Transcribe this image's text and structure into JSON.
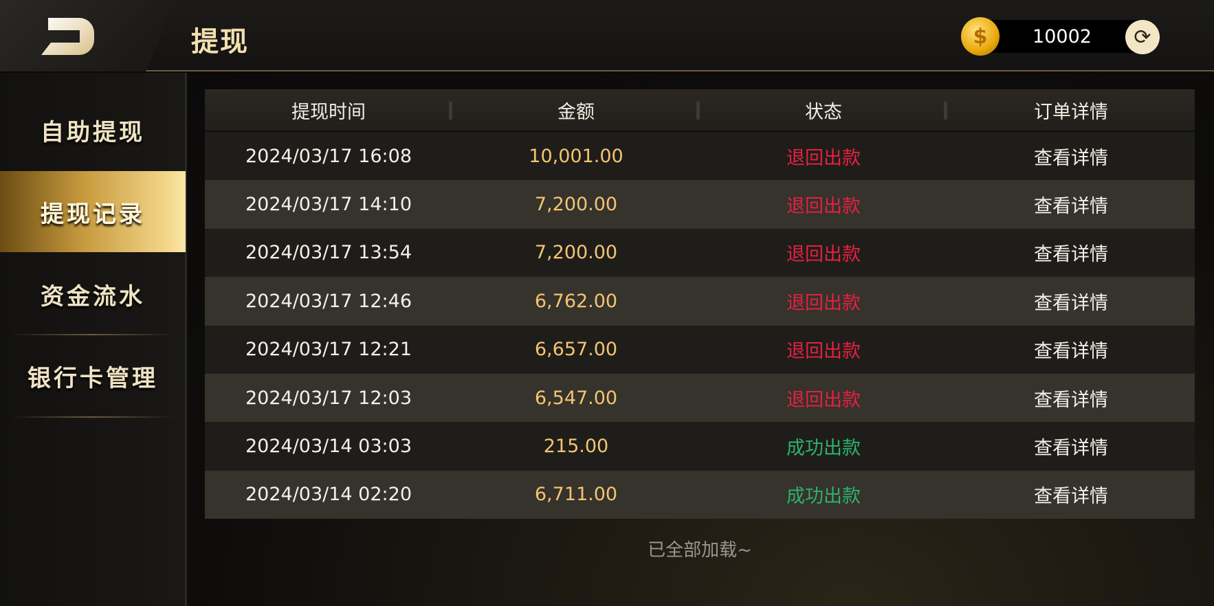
{
  "header": {
    "title": "提现",
    "balance": "10002",
    "coin_icon": "dollar-coin-icon",
    "refresh_icon": "refresh-icon",
    "back_icon": "back-icon"
  },
  "sidebar": {
    "items": [
      {
        "label": "自助提现",
        "active": false
      },
      {
        "label": "提现记录",
        "active": true
      },
      {
        "label": "资金流水",
        "active": false
      },
      {
        "label": "银行卡管理",
        "active": false
      }
    ]
  },
  "table": {
    "columns": [
      "提现时间",
      "金额",
      "状态",
      "订单详情"
    ],
    "rows": [
      {
        "time": "2024/03/17 16:08",
        "amount": "10,001.00",
        "status": "退回出款",
        "status_type": "returned",
        "detail": "查看详情"
      },
      {
        "time": "2024/03/17 14:10",
        "amount": "7,200.00",
        "status": "退回出款",
        "status_type": "returned",
        "detail": "查看详情"
      },
      {
        "time": "2024/03/17 13:54",
        "amount": "7,200.00",
        "status": "退回出款",
        "status_type": "returned",
        "detail": "查看详情"
      },
      {
        "time": "2024/03/17 12:46",
        "amount": "6,762.00",
        "status": "退回出款",
        "status_type": "returned",
        "detail": "查看详情"
      },
      {
        "time": "2024/03/17 12:21",
        "amount": "6,657.00",
        "status": "退回出款",
        "status_type": "returned",
        "detail": "查看详情"
      },
      {
        "time": "2024/03/17 12:03",
        "amount": "6,547.00",
        "status": "退回出款",
        "status_type": "returned",
        "detail": "查看详情"
      },
      {
        "time": "2024/03/14 03:03",
        "amount": "215.00",
        "status": "成功出款",
        "status_type": "success",
        "detail": "查看详情"
      },
      {
        "time": "2024/03/14 02:20",
        "amount": "6,711.00",
        "status": "成功出款",
        "status_type": "success",
        "detail": "查看详情"
      }
    ]
  },
  "footer": {
    "text": "已全部加载~"
  },
  "colors": {
    "amount": "#f3c572",
    "returned": "#e4213f",
    "success": "#2cb26c",
    "accent": "#f2dfae"
  }
}
